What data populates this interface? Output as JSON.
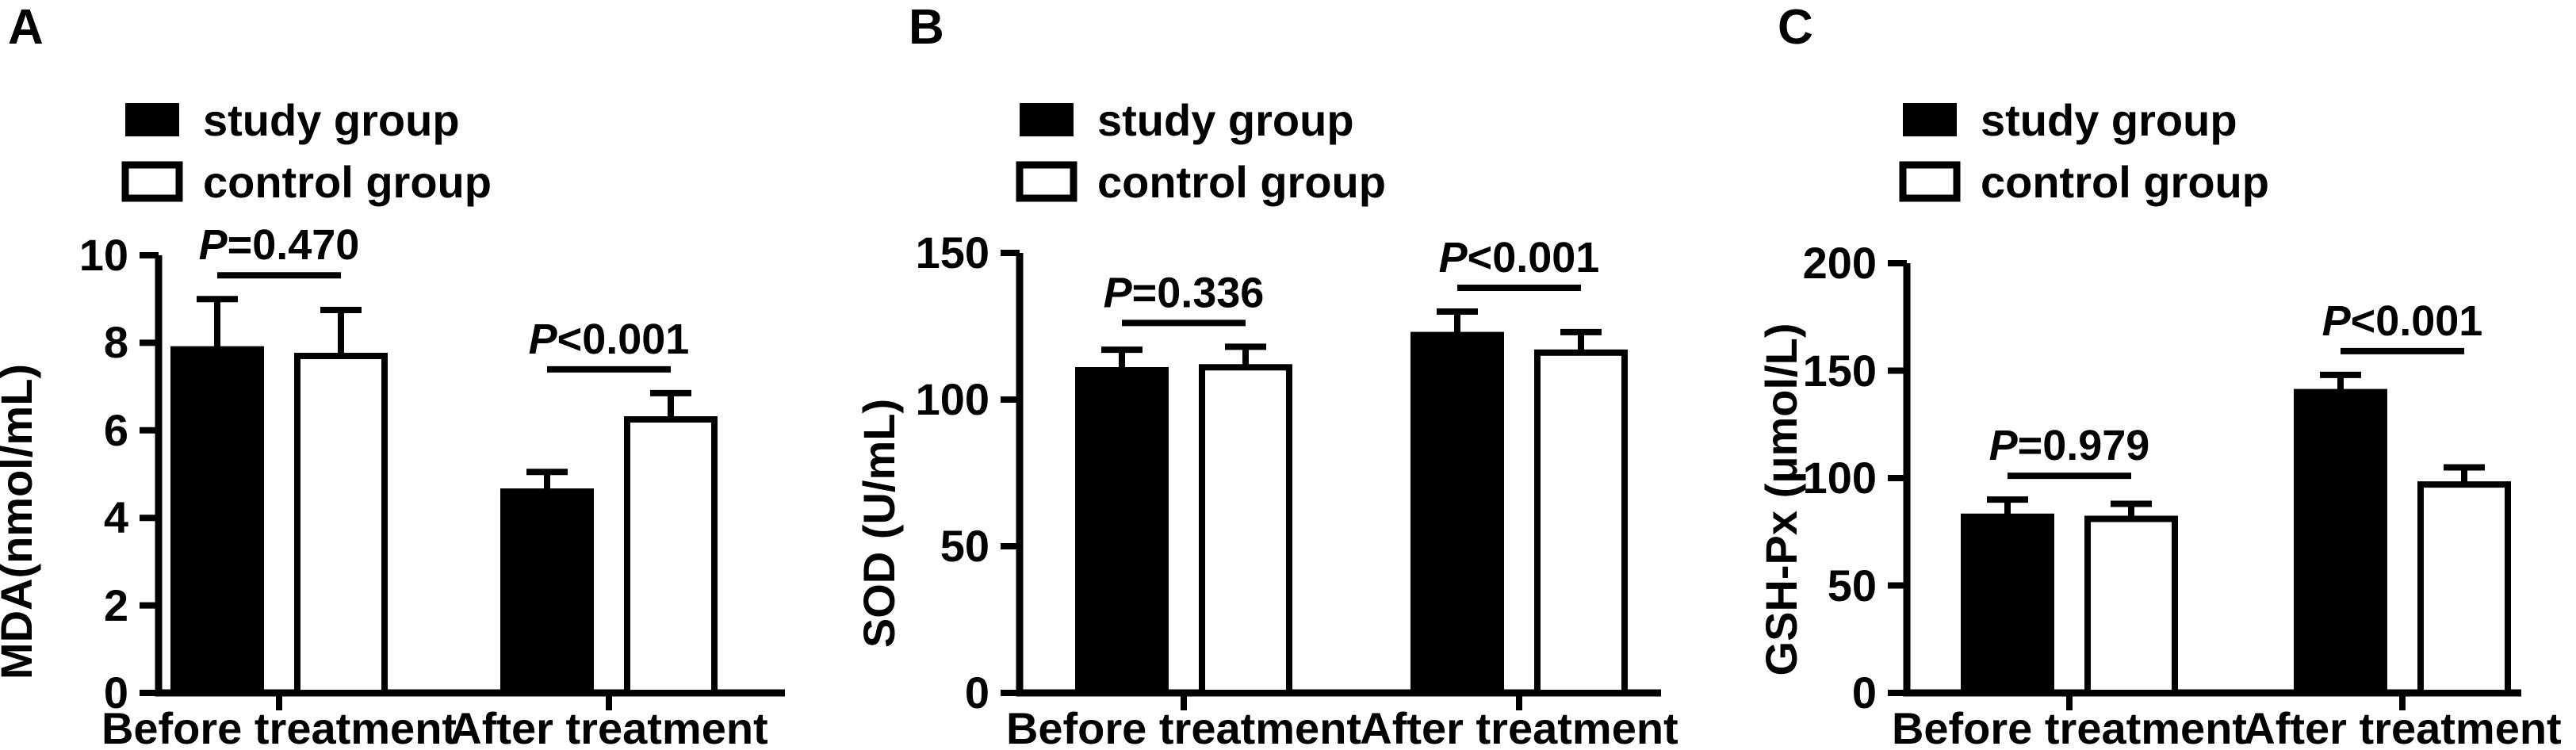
{
  "figure": {
    "background_color": "#ffffff",
    "foreground_color": "#000000"
  },
  "chart_data": [
    {
      "type": "bar",
      "panel_label": "A",
      "title": "",
      "xlabel": "",
      "ylabel": "MDA(nmol/mL)",
      "ylim": [
        0,
        10
      ],
      "yticks": [
        0,
        2,
        4,
        6,
        8,
        10
      ],
      "grid": false,
      "legend_position": "top-left",
      "categories": [
        "Before treatment",
        "After treatment"
      ],
      "series": [
        {
          "name": "study group",
          "fill": "#000000",
          "values": [
            7.85,
            4.6
          ],
          "errors_sd": [
            1.15,
            0.45
          ]
        },
        {
          "name": "control group",
          "fill": "#ffffff",
          "values": [
            7.7,
            6.25
          ],
          "errors_sd": [
            1.05,
            0.6
          ]
        }
      ],
      "annotations": [
        {
          "group": "Before treatment",
          "text": "P=0.470"
        },
        {
          "group": "After treatment",
          "text": "P<0.001"
        }
      ]
    },
    {
      "type": "bar",
      "panel_label": "B",
      "title": "",
      "xlabel": "",
      "ylabel": "SOD (U/mL)",
      "ylim": [
        0,
        150
      ],
      "yticks": [
        0,
        50,
        100,
        150
      ],
      "grid": false,
      "legend_position": "top-left",
      "categories": [
        "Before treatment",
        "After treatment"
      ],
      "series": [
        {
          "name": "study group",
          "fill": "#000000",
          "values": [
            110,
            122
          ],
          "errors_sd": [
            7,
            8
          ]
        },
        {
          "name": "control group",
          "fill": "#ffffff",
          "values": [
            111,
            116
          ],
          "errors_sd": [
            7,
            7
          ]
        }
      ],
      "annotations": [
        {
          "group": "Before treatment",
          "text": "P=0.336"
        },
        {
          "group": "After treatment",
          "text": "P<0.001"
        }
      ]
    },
    {
      "type": "bar",
      "panel_label": "C",
      "title": "",
      "xlabel": "",
      "ylabel": "GSH-Px (μmol/L)",
      "ylim": [
        0,
        200
      ],
      "yticks": [
        0,
        50,
        100,
        150,
        200
      ],
      "grid": false,
      "legend_position": "top-left",
      "categories": [
        "Before treatment",
        "After treatment"
      ],
      "series": [
        {
          "name": "study group",
          "fill": "#000000",
          "values": [
            82,
            140
          ],
          "errors_sd": [
            8,
            8
          ]
        },
        {
          "name": "control group",
          "fill": "#ffffff",
          "values": [
            81,
            97
          ],
          "errors_sd": [
            7,
            8
          ]
        }
      ],
      "annotations": [
        {
          "group": "Before treatment",
          "text": "P=0.979"
        },
        {
          "group": "After treatment",
          "text": "P<0.001"
        }
      ]
    }
  ]
}
